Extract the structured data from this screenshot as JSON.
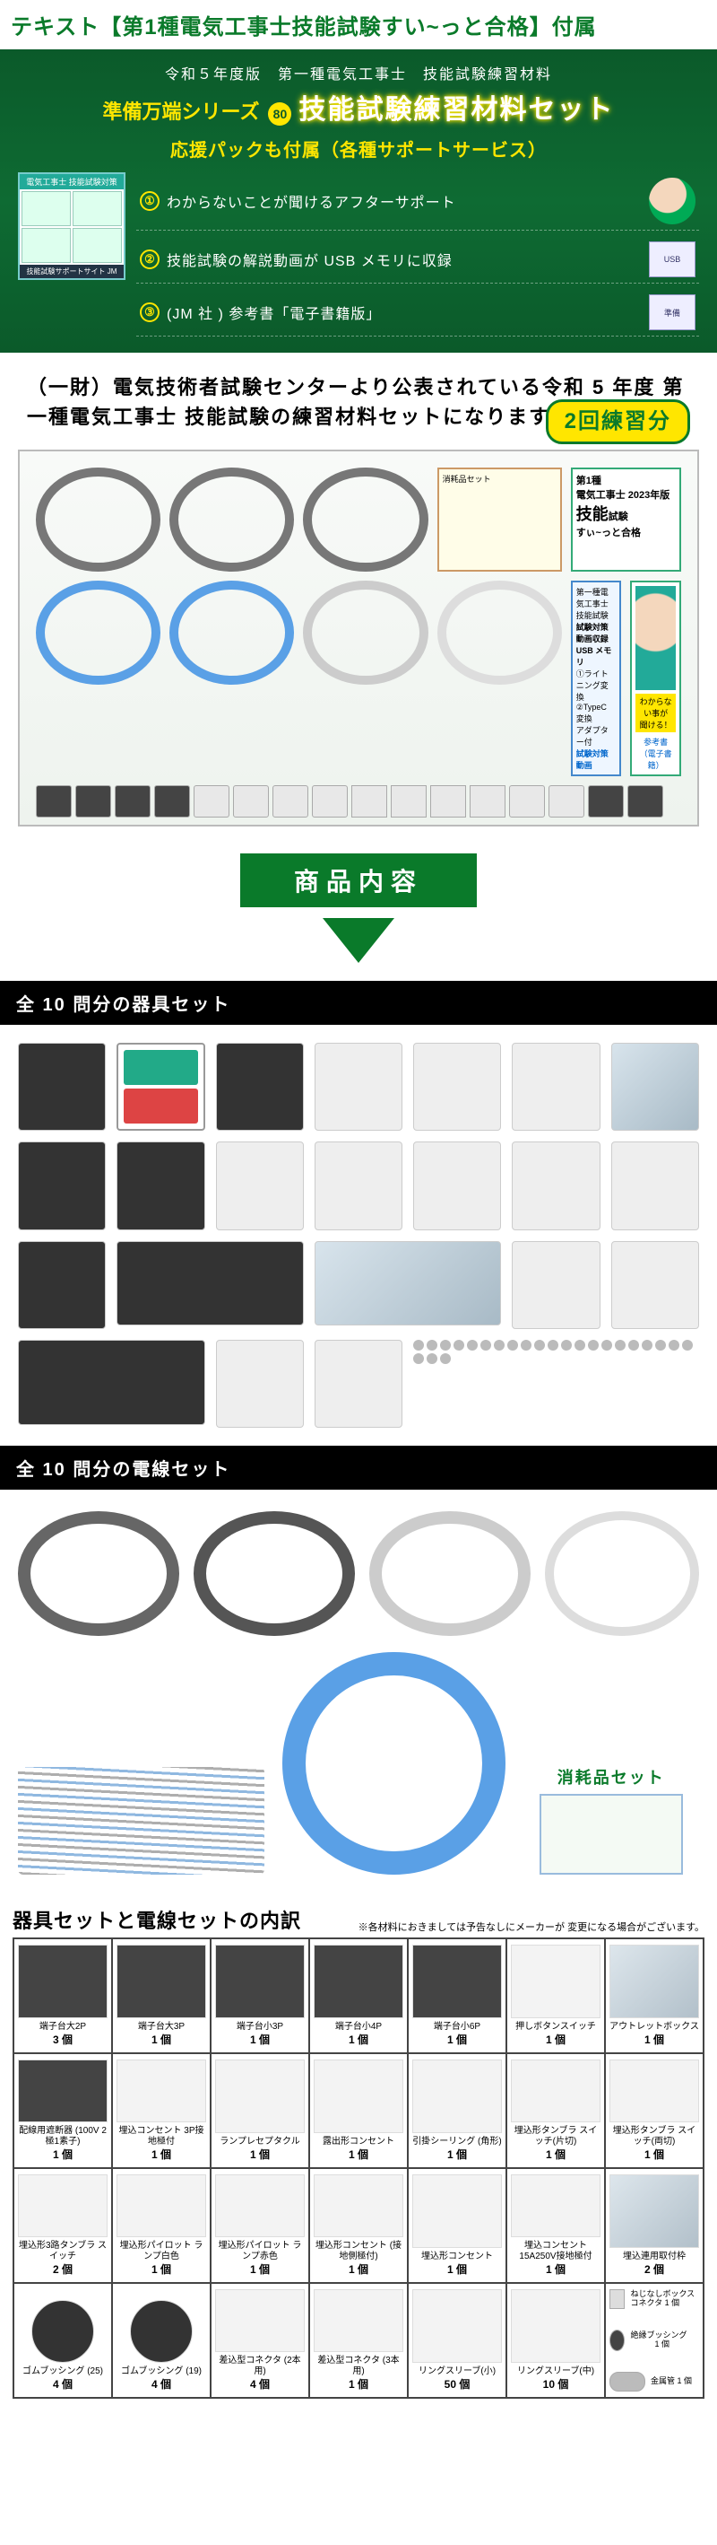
{
  "top_title": "テキスト【第1種電気工事士技能試験すい~っと合格】付属",
  "hero": {
    "line1": "令和５年度版　第一種電気工事士　技能試験練習材料",
    "series": "準備万端シリーズ",
    "num": "80",
    "big": "技能試験練習材料セット",
    "sub": "応援パックも付属（各種サポートサービス）",
    "support_left_hdr": "電気工事士 技能試験対策",
    "support_left_foot": "技能試験サポートサイト JM",
    "supports": [
      {
        "n": "①",
        "text": "わからないことが聞けるアフターサポート",
        "thumb": "avatar"
      },
      {
        "n": "②",
        "text": "技能試験の解説動画が USB メモリに収録",
        "thumb": "usb"
      },
      {
        "n": "③",
        "text": "(JM 社 ) 参考書「電子書籍版」",
        "thumb": "book"
      }
    ]
  },
  "desc": "（一財）電気技術者試験センターより公表されている令和 5 年度 第一種電気工事士 技能試験の練習材料セットになります。",
  "badge": "2回練習分",
  "sec_title": "商品内容",
  "bar1": "全 10 問分の器具セット",
  "bar2": "全 10 問分の電線セット",
  "consum_label": "消耗品セット",
  "inv": {
    "title": "器具セットと電線セットの内訳",
    "note": "※各材料におきましては予告なしにメーカーが\n変更になる場合がございます。",
    "rows": [
      [
        {
          "name": "端子台大2P",
          "qty": "3 個",
          "cls": "dark"
        },
        {
          "name": "端子台大3P",
          "qty": "1 個",
          "cls": "dark"
        },
        {
          "name": "端子台小3P",
          "qty": "1 個",
          "cls": "dark"
        },
        {
          "name": "端子台小4P",
          "qty": "1 個",
          "cls": "dark"
        },
        {
          "name": "端子台小6P",
          "qty": "1 個",
          "cls": "dark"
        },
        {
          "name": "押しボタンスイッチ",
          "qty": "1 個",
          "cls": ""
        },
        {
          "name": "アウトレットボックス",
          "qty": "1 個",
          "cls": "metal"
        }
      ],
      [
        {
          "name": "配線用遮断器\n(100V 2極1素子)",
          "qty": "1 個",
          "cls": "dark"
        },
        {
          "name": "埋込コンセント\n3P接地極付",
          "qty": "1 個",
          "cls": ""
        },
        {
          "name": "ランプレセプタクル",
          "qty": "1 個",
          "cls": ""
        },
        {
          "name": "露出形コンセント",
          "qty": "1 個",
          "cls": ""
        },
        {
          "name": "引掛シーリング\n(角形)",
          "qty": "1 個",
          "cls": ""
        },
        {
          "name": "埋込形タンブラ\nスイッチ(片切)",
          "qty": "1 個",
          "cls": ""
        },
        {
          "name": "埋込形タンブラ\nスイッチ(両切)",
          "qty": "1 個",
          "cls": ""
        }
      ],
      [
        {
          "name": "埋込形3路タンブラ\nスイッチ",
          "qty": "2 個",
          "cls": ""
        },
        {
          "name": "埋込形パイロット\nランプ白色",
          "qty": "1 個",
          "cls": ""
        },
        {
          "name": "埋込形パイロット\nランプ赤色",
          "qty": "1 個",
          "cls": ""
        },
        {
          "name": "埋込形コンセント\n(接地側極付)",
          "qty": "1 個",
          "cls": ""
        },
        {
          "name": "埋込形コンセント",
          "qty": "1 個",
          "cls": ""
        },
        {
          "name": "埋込コンセント\n15A250V接地極付",
          "qty": "1 個",
          "cls": ""
        },
        {
          "name": "埋込連用取付枠",
          "qty": "2 個",
          "cls": "metal"
        }
      ],
      [
        {
          "name": "ゴムブッシング\n(25)",
          "qty": "4 個",
          "cls": "round"
        },
        {
          "name": "ゴムブッシング\n(19)",
          "qty": "4 個",
          "cls": "round"
        },
        {
          "name": "差込型コネクタ\n(2本用)",
          "qty": "4 個",
          "cls": ""
        },
        {
          "name": "差込型コネクタ\n(3本用)",
          "qty": "1 個",
          "cls": ""
        },
        {
          "name": "リングスリーブ(小)",
          "qty": "50 個",
          "cls": ""
        },
        {
          "name": "リングスリーブ(中)",
          "qty": "10 個",
          "cls": ""
        }
      ]
    ],
    "stack": [
      {
        "name": "ねじなしボックス\nコネクタ 1 個",
        "cls": ""
      },
      {
        "name": "絶縁ブッシング\n　　　1 個",
        "cls": "r"
      },
      {
        "name": "金属管\n1 個",
        "cls": "l"
      }
    ]
  },
  "colors": {
    "green": "#0a7a2a",
    "yellow": "#ffe600"
  }
}
